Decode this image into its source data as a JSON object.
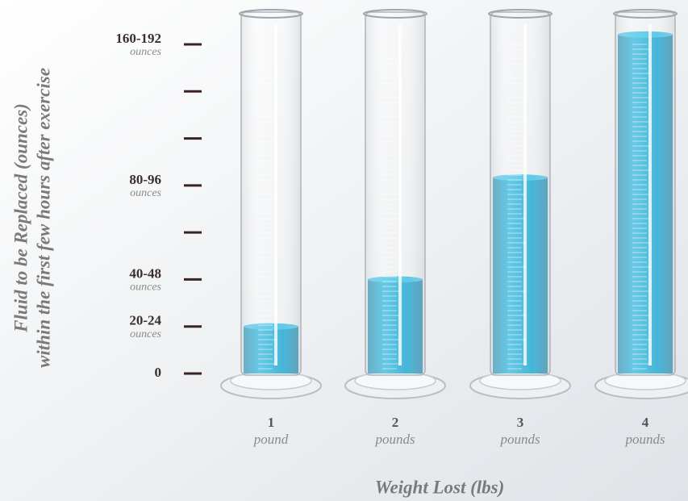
{
  "chart_data": {
    "type": "cylinder",
    "y_title": [
      "Fluid to be Replaced (ounces)",
      "within the first few hours after exercise"
    ],
    "x_title": "Weight Lost (lbs)",
    "categories": [
      "1",
      "2",
      "3",
      "4"
    ],
    "category_units": [
      "pound",
      "pounds",
      "pounds",
      "pounds"
    ],
    "values": [
      24,
      48,
      100,
      173
    ],
    "color": "#1ea6d0",
    "ylim": [
      0,
      168
    ],
    "yticks": [
      {
        "value": 0,
        "label": "0"
      },
      {
        "value": 24,
        "label": "20-24",
        "sublabel": "ounces"
      },
      {
        "value": 48,
        "label": "40-48",
        "sublabel": "ounces"
      },
      {
        "value": 96,
        "label": "80-96",
        "sublabel": "ounces"
      },
      {
        "value": 168,
        "label": "160-192",
        "sublabel": "ounces"
      }
    ],
    "minor_ticks": [
      72,
      120,
      144
    ]
  }
}
